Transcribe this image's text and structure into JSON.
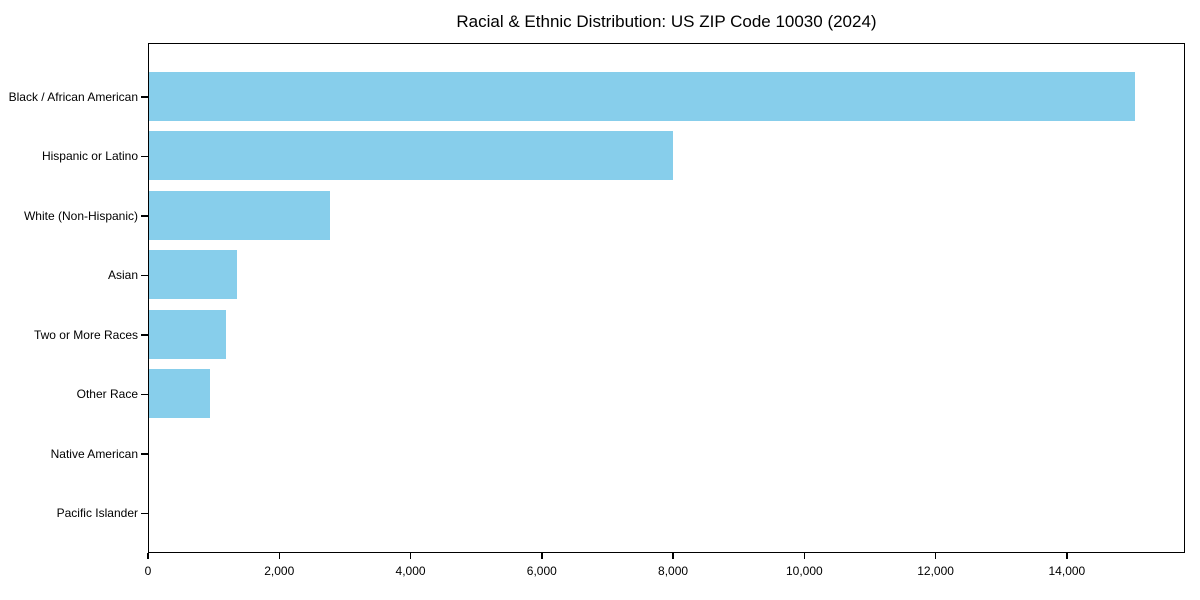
{
  "chart_data": {
    "type": "bar",
    "orientation": "horizontal",
    "title": "Racial & Ethnic Distribution: US ZIP Code 10030 (2024)",
    "categories": [
      "Black / African American",
      "Hispanic or Latino",
      "White (Non-Hispanic)",
      "Asian",
      "Two or More Races",
      "Other Race",
      "Native American",
      "Pacific Islander"
    ],
    "values": [
      15050,
      8000,
      2770,
      1350,
      1170,
      930,
      0,
      0
    ],
    "xlabel": "",
    "ylabel": "",
    "xlim": [
      0,
      15800
    ],
    "x_ticks": [
      0,
      2000,
      4000,
      6000,
      8000,
      10000,
      12000,
      14000
    ],
    "x_tick_labels": [
      "0",
      "2,000",
      "4,000",
      "6,000",
      "8,000",
      "10,000",
      "12,000",
      "14,000"
    ],
    "bar_color": "#87CEEB",
    "axis_color": "#000000",
    "background_color": "#ffffff",
    "grid": false,
    "legend": "none"
  }
}
